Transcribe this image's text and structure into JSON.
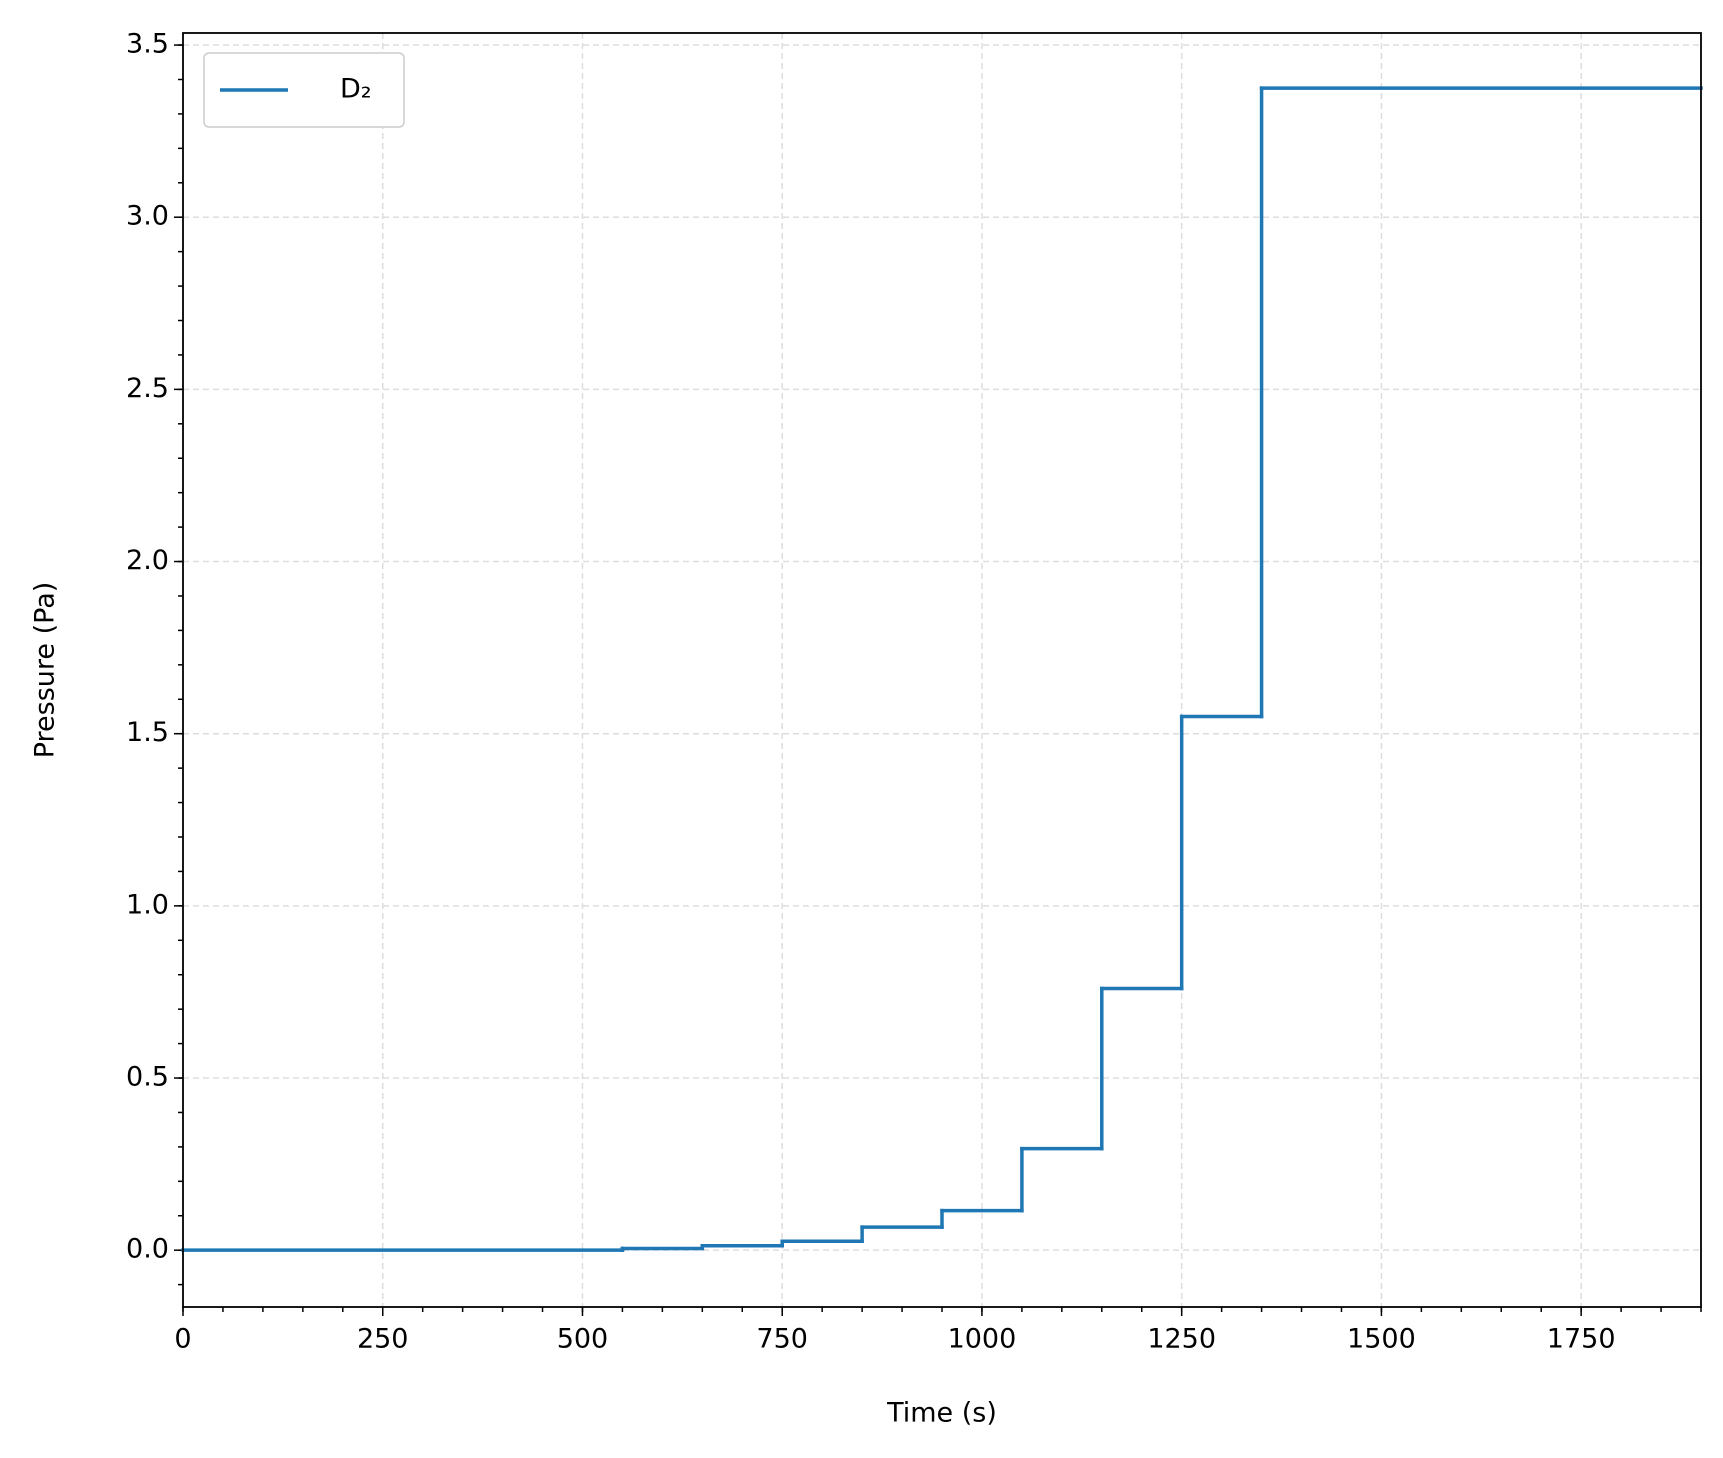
{
  "chart_data": {
    "type": "step",
    "xlabel": "Time (s)",
    "ylabel": "Pressure (Pa)",
    "x": [
      0,
      550,
      650,
      750,
      850,
      950,
      1050,
      1150,
      1250,
      1350
    ],
    "series": [
      {
        "name": "D₂",
        "color": "#1f77b4",
        "values": [
          0,
          0.005,
          0.013,
          0.026,
          0.067,
          0.115,
          0.295,
          0.76,
          1.55,
          3.375
        ]
      }
    ],
    "xlim": [
      0,
      1900
    ],
    "ylim": [
      -0.165,
      3.535
    ],
    "xticks": [
      0,
      250,
      500,
      750,
      1000,
      1250,
      1500,
      1750
    ],
    "yticks": [
      {
        "value": 0,
        "label": "0.0"
      },
      {
        "value": 0.5,
        "label": "0.5"
      },
      {
        "value": 1,
        "label": "1.0"
      },
      {
        "value": 1.5,
        "label": "1.5"
      },
      {
        "value": 2,
        "label": "2.0"
      },
      {
        "value": 2.5,
        "label": "2.5"
      },
      {
        "value": 3,
        "label": "3.0"
      },
      {
        "value": 3.5,
        "label": "3.5"
      }
    ],
    "grid": true,
    "legend": "upper left"
  }
}
